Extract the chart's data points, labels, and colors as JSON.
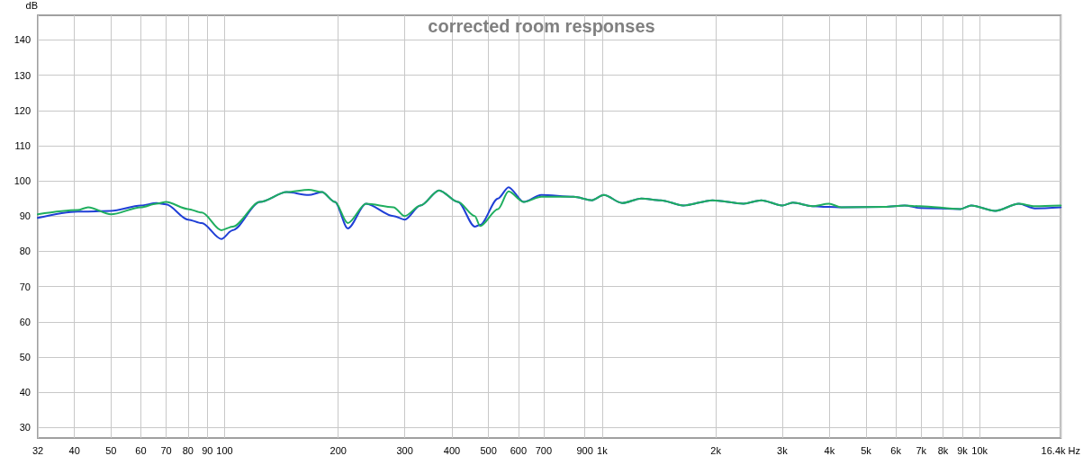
{
  "chart_data": {
    "type": "line",
    "title": "corrected room responses",
    "ylabel": "dB",
    "x": [
      32,
      40.8,
      43.5,
      50,
      60,
      66,
      70,
      80,
      87,
      98,
      105,
      124,
      146,
      167,
      181,
      196,
      212,
      237,
      280,
      300,
      330,
      370,
      415,
      460,
      475,
      530,
      565,
      620,
      690,
      840,
      940,
      1010,
      1130,
      1270,
      1430,
      1640,
      1960,
      2370,
      2640,
      3000,
      3200,
      3600,
      3990,
      4300,
      5600,
      6330,
      6960,
      8900,
      9500,
      11000,
      12700,
      14000,
      16400
    ],
    "series": [
      {
        "color": "#1f3fd6",
        "values": [
          89.5,
          91.3,
          91.3,
          91.5,
          93,
          93.7,
          93.3,
          89,
          88,
          83.5,
          86,
          94,
          96.8,
          96,
          96.8,
          94,
          86.5,
          93.5,
          90,
          89,
          93,
          97.3,
          94,
          87,
          87.5,
          95,
          98.2,
          94,
          96,
          95.5,
          94.5,
          96,
          93.7,
          95,
          94.5,
          93,
          94.5,
          93.5,
          94.5,
          93,
          93.8,
          92.8,
          92.6,
          92.5,
          92.6,
          93,
          92.3,
          92,
          93,
          91.5,
          93.5,
          92.2,
          92.5
        ]
      },
      {
        "color": "#1fae5f",
        "values": [
          90.5,
          91.7,
          92.5,
          90.5,
          92.5,
          93.5,
          94,
          92,
          91,
          86,
          87,
          94,
          96.8,
          97.5,
          96.8,
          94,
          88,
          93.5,
          92.5,
          90,
          93,
          97.3,
          94,
          90,
          87.2,
          92,
          97,
          94,
          95.5,
          95.5,
          94.5,
          96,
          93.7,
          95,
          94.5,
          93,
          94.5,
          93.5,
          94.5,
          93,
          93.8,
          92.8,
          93.5,
          92.5,
          92.6,
          93,
          92.8,
          92,
          93,
          91.5,
          93.5,
          92.8,
          93
        ]
      }
    ],
    "xlim": [
      32,
      16400
    ],
    "ylim": [
      27,
      147
    ],
    "xticks": [
      32,
      40,
      50,
      60,
      70,
      80,
      90,
      100,
      200,
      300,
      400,
      500,
      600,
      700,
      900,
      {
        "value": 1000,
        "label": "1k"
      },
      {
        "value": 2000,
        "label": "2k"
      },
      {
        "value": 3000,
        "label": "3k"
      },
      {
        "value": 4000,
        "label": "4k"
      },
      {
        "value": 5000,
        "label": "5k"
      },
      {
        "value": 6000,
        "label": "6k"
      },
      {
        "value": 7000,
        "label": "7k"
      },
      {
        "value": 8000,
        "label": "8k"
      },
      {
        "value": 9000,
        "label": "9k"
      },
      {
        "value": 10000,
        "label": "10k"
      },
      {
        "value": 16400,
        "label": "16.4k Hz"
      }
    ],
    "yticks": [
      30,
      40,
      50,
      60,
      70,
      80,
      90,
      100,
      110,
      120,
      130,
      140
    ],
    "log": "x",
    "grid": true,
    "marker": "none",
    "line_style": "solid"
  }
}
